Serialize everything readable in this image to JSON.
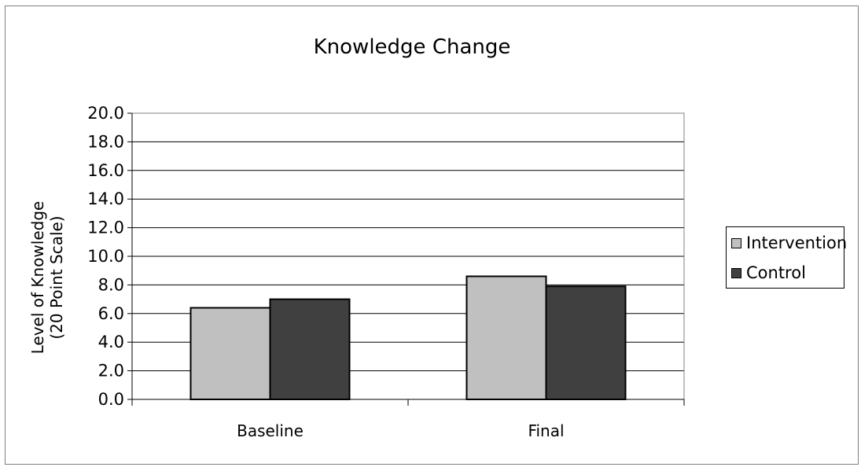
{
  "chart_data": {
    "type": "bar",
    "title": "Knowledge Change",
    "xlabel": "",
    "ylabel_lines": [
      "Level of Knowledge",
      "(20 Point Scale)"
    ],
    "categories": [
      "Baseline",
      "Final"
    ],
    "series": [
      {
        "name": "Intervention",
        "values": [
          6.4,
          8.6
        ],
        "color": "#c0c0c0"
      },
      {
        "name": "Control",
        "values": [
          7.0,
          7.9
        ],
        "color": "#404040"
      }
    ],
    "ylim": [
      0,
      20
    ],
    "yticks": [
      "0.0",
      "2.0",
      "4.0",
      "6.0",
      "8.0",
      "10.0",
      "12.0",
      "14.0",
      "16.0",
      "18.0",
      "20.0"
    ],
    "grid": true,
    "legend_position": "right"
  }
}
